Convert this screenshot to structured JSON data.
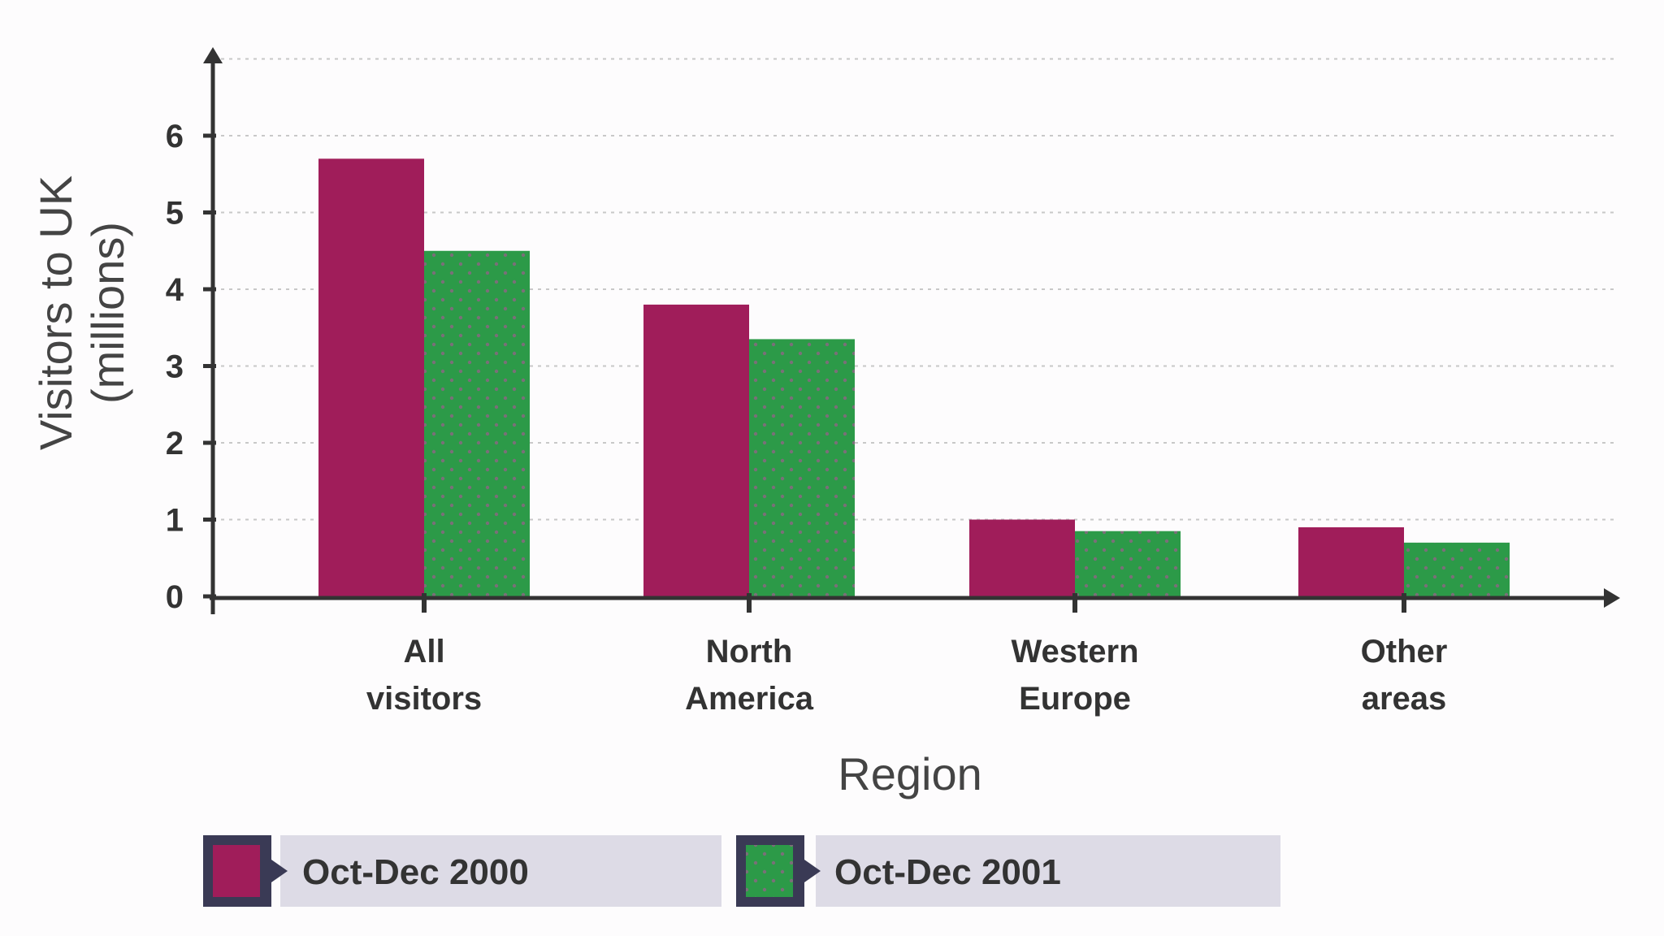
{
  "chart_data": {
    "type": "bar",
    "title": "",
    "xlabel": "Region",
    "ylabel": [
      "Visitors to UK",
      "(millions)"
    ],
    "categories": [
      [
        "All",
        "visitors"
      ],
      [
        "North",
        "America"
      ],
      [
        "Western",
        "Europe"
      ],
      [
        "Other",
        "areas"
      ]
    ],
    "series": [
      {
        "name": "Oct-Dec 2000",
        "values": [
          5.7,
          3.8,
          1.0,
          0.9
        ],
        "color": "#a01d5a",
        "pattern": "solid"
      },
      {
        "name": "Oct-Dec 2001",
        "values": [
          4.5,
          3.35,
          0.85,
          0.7
        ],
        "color": "#2c9a48",
        "pattern": "dotted"
      }
    ],
    "yticks": [
      0,
      1,
      2,
      3,
      4,
      5,
      6
    ],
    "ylim": [
      0,
      7
    ],
    "grid": true,
    "legend": "bottom"
  },
  "colors": {
    "axis": "#333333",
    "grid": "#c8c8c8",
    "legend_box": "#dddbe6",
    "legend_swatch_border": "#3a3a55",
    "dot": "#7a6f78"
  }
}
